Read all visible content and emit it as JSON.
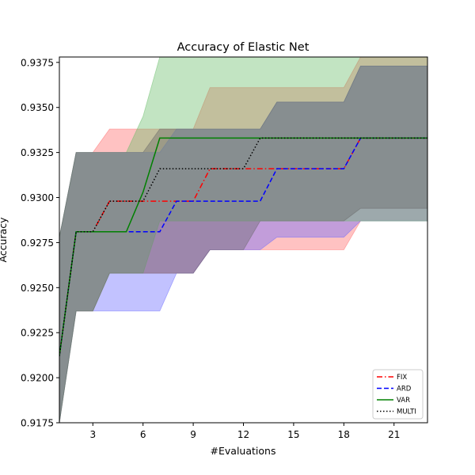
{
  "chart_data": {
    "type": "line",
    "title": "Accuracy of Elastic Net",
    "xlabel": "#Evaluations",
    "ylabel": "Accuracy",
    "xlim": [
      1,
      23
    ],
    "ylim": [
      0.9175,
      0.9378
    ],
    "xticks": [
      3,
      6,
      9,
      12,
      15,
      18,
      21
    ],
    "yticks": [
      0.9175,
      0.92,
      0.9225,
      0.925,
      0.9275,
      0.93,
      0.9325,
      0.935,
      0.9375
    ],
    "ytick_labels": [
      "0.9175",
      "0.9200",
      "0.9225",
      "0.9250",
      "0.9275",
      "0.9300",
      "0.9325",
      "0.9350",
      "0.9375"
    ],
    "grid": false,
    "legend_position": "lower-right",
    "series": [
      {
        "name": "FIX",
        "color": "#ff0000",
        "band_color": "#ff6666",
        "dash": "dashdot",
        "x": [
          1,
          2,
          3,
          4,
          5,
          6,
          7,
          8,
          9,
          10,
          11,
          12,
          13,
          14,
          15,
          16,
          17,
          18,
          19,
          20,
          21,
          22,
          23
        ],
        "y": [
          0.9212,
          0.9281,
          0.9281,
          0.9298,
          0.9298,
          0.9298,
          0.9298,
          0.9298,
          0.9298,
          0.9316,
          0.9316,
          0.9316,
          0.9316,
          0.9316,
          0.9316,
          0.9316,
          0.9316,
          0.9316,
          0.9333,
          0.9333,
          0.9333,
          0.9333,
          0.9333
        ],
        "lower": [
          0.9175,
          0.9237,
          0.9237,
          0.9258,
          0.9258,
          0.9258,
          0.9258,
          0.9258,
          0.9258,
          0.9271,
          0.9271,
          0.9271,
          0.9271,
          0.9271,
          0.9271,
          0.9271,
          0.9271,
          0.9271,
          0.9287,
          0.9287,
          0.9287,
          0.9287,
          0.9287
        ],
        "upper": [
          0.9278,
          0.9325,
          0.9325,
          0.9338,
          0.9338,
          0.9338,
          0.9338,
          0.9338,
          0.9338,
          0.9361,
          0.9361,
          0.9361,
          0.9361,
          0.9361,
          0.9361,
          0.9361,
          0.9361,
          0.9361,
          0.9378,
          0.9378,
          0.9378,
          0.9378,
          0.9378
        ]
      },
      {
        "name": "ARD",
        "color": "#0000ff",
        "band_color": "#6666ff",
        "dash": "dashed",
        "x": [
          1,
          2,
          3,
          4,
          5,
          6,
          7,
          8,
          9,
          10,
          11,
          12,
          13,
          14,
          15,
          16,
          17,
          18,
          19,
          20,
          21,
          22,
          23
        ],
        "y": [
          0.9212,
          0.9281,
          0.9281,
          0.9281,
          0.9281,
          0.9281,
          0.9281,
          0.9298,
          0.9298,
          0.9298,
          0.9298,
          0.9298,
          0.9298,
          0.9316,
          0.9316,
          0.9316,
          0.9316,
          0.9316,
          0.9333,
          0.9333,
          0.9333,
          0.9333,
          0.9333
        ],
        "lower": [
          0.9175,
          0.9237,
          0.9237,
          0.9237,
          0.9237,
          0.9237,
          0.9237,
          0.9258,
          0.9258,
          0.9271,
          0.9271,
          0.9271,
          0.9271,
          0.9278,
          0.9278,
          0.9278,
          0.9278,
          0.9278,
          0.9287,
          0.9287,
          0.9287,
          0.9287,
          0.9287
        ],
        "upper": [
          0.9278,
          0.9325,
          0.9325,
          0.9325,
          0.9325,
          0.9325,
          0.9325,
          0.9338,
          0.9338,
          0.9338,
          0.9338,
          0.9338,
          0.9338,
          0.9353,
          0.9353,
          0.9353,
          0.9353,
          0.9353,
          0.9373,
          0.9373,
          0.9373,
          0.9373,
          0.9373
        ]
      },
      {
        "name": "VAR",
        "color": "#008000",
        "band_color": "#66bb66",
        "dash": "solid",
        "x": [
          1,
          2,
          3,
          4,
          5,
          6,
          7,
          8,
          9,
          10,
          11,
          12,
          13,
          14,
          15,
          16,
          17,
          18,
          19,
          20,
          21,
          22,
          23
        ],
        "y": [
          0.9212,
          0.9281,
          0.9281,
          0.9281,
          0.9281,
          0.9303,
          0.9333,
          0.9333,
          0.9333,
          0.9333,
          0.9333,
          0.9333,
          0.9333,
          0.9333,
          0.9333,
          0.9333,
          0.9333,
          0.9333,
          0.9333,
          0.9333,
          0.9333,
          0.9333,
          0.9333
        ],
        "lower": [
          0.9175,
          0.9237,
          0.9237,
          0.9258,
          0.9258,
          0.9258,
          0.9287,
          0.9287,
          0.9287,
          0.9287,
          0.9287,
          0.9287,
          0.9287,
          0.9287,
          0.9287,
          0.9287,
          0.9287,
          0.9287,
          0.9287,
          0.9287,
          0.9287,
          0.9287,
          0.9287
        ],
        "upper": [
          0.9278,
          0.9325,
          0.9325,
          0.9325,
          0.9325,
          0.9345,
          0.9378,
          0.9378,
          0.9378,
          0.9378,
          0.9378,
          0.9378,
          0.9378,
          0.9378,
          0.9378,
          0.9378,
          0.9378,
          0.9378,
          0.9378,
          0.9378,
          0.9378,
          0.9378,
          0.9378
        ]
      },
      {
        "name": "MULTI",
        "color": "#000000",
        "band_color": "#666666",
        "dash": "dotted",
        "x": [
          1,
          2,
          3,
          4,
          5,
          6,
          7,
          8,
          9,
          10,
          11,
          12,
          13,
          14,
          15,
          16,
          17,
          18,
          19,
          20,
          21,
          22,
          23
        ],
        "y": [
          0.9212,
          0.9281,
          0.9281,
          0.9298,
          0.9298,
          0.9298,
          0.9316,
          0.9316,
          0.9316,
          0.9316,
          0.9316,
          0.9316,
          0.9333,
          0.9333,
          0.9333,
          0.9333,
          0.9333,
          0.9333,
          0.9333,
          0.9333,
          0.9333,
          0.9333,
          0.9333
        ],
        "lower": [
          0.9175,
          0.9237,
          0.9237,
          0.9258,
          0.9258,
          0.9258,
          0.9258,
          0.9258,
          0.9258,
          0.9271,
          0.9271,
          0.9271,
          0.9287,
          0.9287,
          0.9287,
          0.9287,
          0.9287,
          0.9287,
          0.9294,
          0.9294,
          0.9294,
          0.9294,
          0.9294
        ],
        "upper": [
          0.9278,
          0.9325,
          0.9325,
          0.9325,
          0.9325,
          0.9325,
          0.9338,
          0.9338,
          0.9338,
          0.9338,
          0.9338,
          0.9338,
          0.9338,
          0.9353,
          0.9353,
          0.9353,
          0.9353,
          0.9353,
          0.9373,
          0.9373,
          0.9373,
          0.9373,
          0.9373
        ]
      }
    ]
  }
}
